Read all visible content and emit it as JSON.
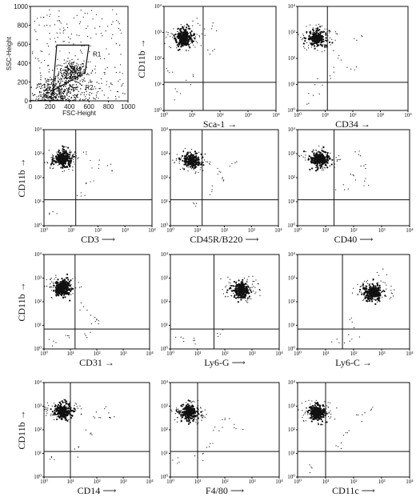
{
  "figure_labels": {
    "ssc_ylabel": "SSC-Height",
    "fsc_xlabel": "FSC-Height",
    "region_r1": "R1",
    "region_r2": "R2"
  },
  "log_ticks": [
    "10⁰",
    "10¹",
    "10²",
    "10³",
    "10⁴"
  ],
  "chart_data": [
    {
      "type": "scatter",
      "id": "scatter-gate",
      "title": "",
      "xlabel": "FSC-Height",
      "ylabel": "SSC-Height",
      "xlim": [
        0,
        1000
      ],
      "ylim": [
        0,
        1000
      ],
      "xticks": [
        "0",
        "200",
        "400",
        "600",
        "800",
        "1000"
      ],
      "yticks": [
        "0",
        "200",
        "400",
        "600",
        "800",
        "1000"
      ],
      "gates": [
        {
          "name": "R1",
          "polygon": [
            [
              200,
              100
            ],
            [
              600,
              100
            ],
            [
              600,
              600
            ],
            [
              200,
              600
            ]
          ]
        }
      ],
      "clusters": [
        {
          "cx": 430,
          "cy": 310,
          "spread": 70,
          "n": 260
        },
        {
          "cx": 230,
          "cy": 70,
          "spread": 90,
          "n": 320
        },
        {
          "cx": 420,
          "cy": 120,
          "spread": 120,
          "n": 140
        }
      ]
    },
    {
      "type": "scatter",
      "id": "sca1",
      "xlabel": "Sca-1 →",
      "ylabel": "CD11b →",
      "scale": "log",
      "xlim": [
        1,
        10000
      ],
      "ylim": [
        1,
        10000
      ],
      "quadrant": {
        "x": 25,
        "y": 12
      },
      "cluster": {
        "x": 5,
        "y": 600,
        "n": 300
      },
      "sparse": [
        [
          40,
          200
        ],
        [
          8,
          15
        ],
        [
          3,
          4
        ],
        [
          60,
          1500
        ],
        [
          15,
          3000
        ],
        [
          2,
          30
        ],
        [
          30,
          700
        ]
      ]
    },
    {
      "type": "scatter",
      "id": "cd34",
      "xlabel": "CD34 →",
      "ylabel": "",
      "scale": "log",
      "xlim": [
        1,
        10000
      ],
      "ylim": [
        1,
        10000
      ],
      "quadrant": {
        "x": 12,
        "y": 12
      },
      "cluster": {
        "x": 5,
        "y": 600,
        "n": 280
      },
      "sparse": [
        [
          30,
          100
        ],
        [
          80,
          40
        ],
        [
          6,
          8
        ],
        [
          20,
          30
        ],
        [
          2,
          3
        ],
        [
          150,
          600
        ]
      ]
    },
    {
      "type": "scatter",
      "id": "cd3",
      "xlabel": "CD3 ⟶",
      "ylabel": "CD11b →",
      "scale": "log",
      "xlim": [
        1,
        10000
      ],
      "ylim": [
        1,
        10000
      ],
      "quadrant": {
        "x": 15,
        "y": 12
      },
      "cluster": {
        "x": 5,
        "y": 600,
        "n": 320
      },
      "sparse": [
        [
          40,
          80
        ],
        [
          100,
          300
        ],
        [
          20,
          20
        ],
        [
          300,
          250
        ],
        [
          2,
          3
        ],
        [
          60,
          1000
        ]
      ]
    },
    {
      "type": "scatter",
      "id": "cd45r",
      "xlabel": "CD45R/B220 ⟶",
      "ylabel": "",
      "scale": "log",
      "xlim": [
        1,
        10000
      ],
      "ylim": [
        1,
        10000
      ],
      "quadrant": {
        "x": 15,
        "y": 12
      },
      "cluster": {
        "x": 6,
        "y": 500,
        "n": 260
      },
      "sparse": [
        [
          50,
          200
        ],
        [
          100,
          80
        ],
        [
          30,
          30
        ],
        [
          8,
          8
        ],
        [
          200,
          400
        ]
      ]
    },
    {
      "type": "scatter",
      "id": "cd40",
      "xlabel": "CD40 ⟶",
      "ylabel": "",
      "scale": "log",
      "xlim": [
        1,
        10000
      ],
      "ylim": [
        1,
        10000
      ],
      "quadrant": {
        "x": 20,
        "y": 12
      },
      "cluster": {
        "x": 6,
        "y": 600,
        "n": 320
      },
      "sparse": [
        [
          80,
          100
        ],
        [
          200,
          300
        ],
        [
          40,
          40
        ],
        [
          300,
          60
        ],
        [
          150,
          1000
        ]
      ]
    },
    {
      "type": "scatter",
      "id": "cd31",
      "xlabel": "CD31 →",
      "ylabel": "CD11b →",
      "scale": "log",
      "xlim": [
        1,
        10000
      ],
      "ylim": [
        1,
        10000
      ],
      "quadrant": {
        "x": 15,
        "y": 7
      },
      "cluster": {
        "x": 5,
        "y": 400,
        "n": 330
      },
      "sparse": [
        [
          60,
          20
        ],
        [
          40,
          5
        ],
        [
          100,
          15
        ],
        [
          8,
          3
        ],
        [
          2,
          2
        ],
        [
          30,
          60
        ]
      ]
    },
    {
      "type": "scatter",
      "id": "ly6g",
      "xlabel": "Ly6-G ⟶",
      "ylabel": "",
      "scale": "log",
      "xlim": [
        1,
        10000
      ],
      "ylim": [
        1,
        10000
      ],
      "quadrant": {
        "x": 40,
        "y": 7
      },
      "cluster": {
        "x": 400,
        "y": 300,
        "n": 280
      },
      "sparse": [
        [
          3,
          3
        ],
        [
          60,
          5
        ],
        [
          8,
          2
        ],
        [
          1000,
          1200
        ],
        [
          150,
          800
        ]
      ]
    },
    {
      "type": "scatter",
      "id": "ly6c",
      "xlabel": "Ly6-C →",
      "ylabel": "",
      "scale": "log",
      "xlim": [
        1,
        10000
      ],
      "ylim": [
        1,
        10000
      ],
      "quadrant": {
        "x": 40,
        "y": 7
      },
      "cluster": {
        "x": 500,
        "y": 250,
        "n": 280
      },
      "sparse": [
        [
          80,
          3
        ],
        [
          100,
          10
        ],
        [
          30,
          2
        ],
        [
          900,
          1300
        ],
        [
          300,
          700
        ]
      ]
    },
    {
      "type": "scatter",
      "id": "cd14",
      "xlabel": "CD14 ⟶",
      "ylabel": "CD11b →",
      "scale": "log",
      "xlim": [
        1,
        10000
      ],
      "ylim": [
        1,
        10000
      ],
      "quadrant": {
        "x": 10,
        "y": 12
      },
      "cluster": {
        "x": 5,
        "y": 600,
        "n": 340
      },
      "sparse": [
        [
          100,
          400
        ],
        [
          200,
          700
        ],
        [
          50,
          80
        ],
        [
          20,
          15
        ],
        [
          2,
          5
        ],
        [
          400,
          300
        ]
      ]
    },
    {
      "type": "scatter",
      "id": "f480",
      "xlabel": "F4/80 ⟶",
      "ylabel": "",
      "scale": "log",
      "xlim": [
        1,
        10000
      ],
      "ylim": [
        1,
        10000
      ],
      "quadrant": {
        "x": 10,
        "y": 12
      },
      "cluster": {
        "x": 5,
        "y": 550,
        "n": 320
      },
      "sparse": [
        [
          30,
          20
        ],
        [
          50,
          100
        ],
        [
          120,
          300
        ],
        [
          2,
          5
        ],
        [
          15,
          8
        ],
        [
          300,
          150
        ]
      ]
    },
    {
      "type": "scatter",
      "id": "cd11c",
      "xlabel": "CD11c ⟶",
      "ylabel": "",
      "scale": "log",
      "xlim": [
        1,
        10000
      ],
      "ylim": [
        1,
        10000
      ],
      "quadrant": {
        "x": 10,
        "y": 12
      },
      "cluster": {
        "x": 5,
        "y": 550,
        "n": 320
      },
      "sparse": [
        [
          60,
          80
        ],
        [
          150,
          300
        ],
        [
          40,
          20
        ],
        [
          3,
          3
        ],
        [
          400,
          700
        ]
      ]
    }
  ]
}
